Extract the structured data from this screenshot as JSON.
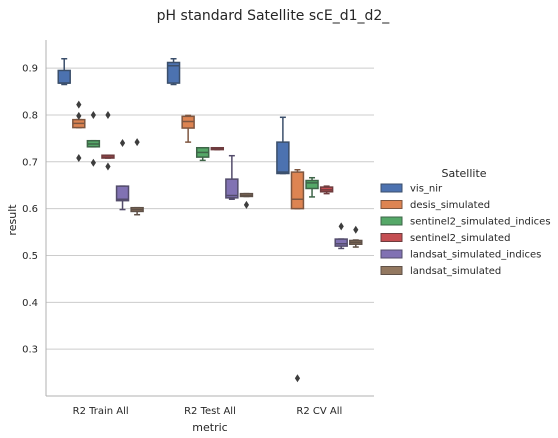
{
  "chart_data": {
    "type": "box",
    "title": "pH standard Satellite scE_d1_d2_",
    "xlabel": "metric",
    "ylabel": "result",
    "ylim": [
      0.2,
      0.96
    ],
    "yticks": [
      0.3,
      0.4,
      0.5,
      0.6,
      0.7,
      0.8,
      0.9
    ],
    "grid": "horizontal",
    "categories": [
      "R2 Train All",
      "R2 Test All",
      "R2 CV All"
    ],
    "legend": {
      "title": "Satellite",
      "placement": "right"
    },
    "series": [
      {
        "name": "vis_nir",
        "color": "#4c72b0",
        "dark": "#3b4f6b",
        "boxes": [
          {
            "whislo": 0.865,
            "q1": 0.868,
            "med": 0.868,
            "q3": 0.895,
            "whishi": 0.92,
            "fliers": []
          },
          {
            "whislo": 0.865,
            "q1": 0.868,
            "med": 0.905,
            "q3": 0.912,
            "whishi": 0.92,
            "fliers": []
          },
          {
            "whislo": 0.675,
            "q1": 0.675,
            "med": 0.678,
            "q3": 0.742,
            "whishi": 0.795,
            "fliers": []
          }
        ]
      },
      {
        "name": "desis_simulated",
        "color": "#dd8452",
        "dark": "#7e5640",
        "boxes": [
          {
            "whislo": 0.773,
            "q1": 0.773,
            "med": 0.782,
            "q3": 0.79,
            "whishi": 0.79,
            "fliers": [
              0.822,
              0.708,
              0.798
            ]
          },
          {
            "whislo": 0.742,
            "q1": 0.772,
            "med": 0.786,
            "q3": 0.797,
            "whishi": 0.799,
            "fliers": []
          },
          {
            "whislo": 0.6,
            "q1": 0.6,
            "med": 0.62,
            "q3": 0.678,
            "whishi": 0.683,
            "fliers": [
              0.238
            ]
          }
        ]
      },
      {
        "name": "sentinel2_simulated_indices",
        "color": "#55a868",
        "dark": "#3e6548",
        "boxes": [
          {
            "whislo": 0.732,
            "q1": 0.732,
            "med": 0.738,
            "q3": 0.745,
            "whishi": 0.745,
            "fliers": [
              0.8,
              0.698
            ]
          },
          {
            "whislo": 0.703,
            "q1": 0.71,
            "med": 0.72,
            "q3": 0.73,
            "whishi": 0.73,
            "fliers": []
          },
          {
            "whislo": 0.625,
            "q1": 0.643,
            "med": 0.655,
            "q3": 0.66,
            "whishi": 0.666,
            "fliers": []
          }
        ]
      },
      {
        "name": "sentinel2_simulated",
        "color": "#c44e52",
        "dark": "#6e3c3e",
        "boxes": [
          {
            "whislo": 0.708,
            "q1": 0.708,
            "med": 0.71,
            "q3": 0.714,
            "whishi": 0.714,
            "fliers": [
              0.8,
              0.69
            ]
          },
          {
            "whislo": 0.726,
            "q1": 0.726,
            "med": 0.728,
            "q3": 0.73,
            "whishi": 0.73,
            "fliers": []
          },
          {
            "whislo": 0.632,
            "q1": 0.636,
            "med": 0.64,
            "q3": 0.646,
            "whishi": 0.648,
            "fliers": []
          }
        ]
      },
      {
        "name": "landsat_simulated_indices",
        "color": "#8172b3",
        "dark": "#534c6b",
        "boxes": [
          {
            "whislo": 0.598,
            "q1": 0.617,
            "med": 0.62,
            "q3": 0.648,
            "whishi": 0.648,
            "fliers": [
              0.74
            ]
          },
          {
            "whislo": 0.62,
            "q1": 0.623,
            "med": 0.628,
            "q3": 0.663,
            "whishi": 0.713,
            "fliers": []
          },
          {
            "whislo": 0.515,
            "q1": 0.52,
            "med": 0.525,
            "q3": 0.535,
            "whishi": 0.535,
            "fliers": [
              0.562
            ]
          }
        ]
      },
      {
        "name": "landsat_simulated",
        "color": "#937860",
        "dark": "#5f5148",
        "boxes": [
          {
            "whislo": 0.587,
            "q1": 0.594,
            "med": 0.598,
            "q3": 0.602,
            "whishi": 0.602,
            "fliers": [
              0.742
            ]
          },
          {
            "whislo": 0.626,
            "q1": 0.626,
            "med": 0.628,
            "q3": 0.632,
            "whishi": 0.632,
            "fliers": [
              0.608
            ]
          },
          {
            "whislo": 0.518,
            "q1": 0.524,
            "med": 0.528,
            "q3": 0.532,
            "whishi": 0.533,
            "fliers": [
              0.555
            ]
          }
        ]
      }
    ]
  }
}
